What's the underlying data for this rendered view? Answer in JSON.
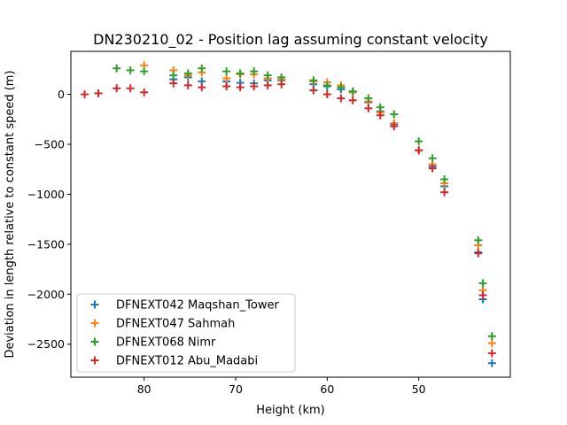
{
  "chart_data": {
    "type": "scatter",
    "title": "DN230210_02 - Position lag assuming constant velocity",
    "xlabel": "Height (km)",
    "ylabel": "Deviation in length relative to constant speed (m)",
    "xlim": [
      88.0,
      40.0
    ],
    "ylim": [
      -2830,
      430
    ],
    "xticks": [
      80,
      70,
      60,
      50
    ],
    "yticks": [
      0,
      -500,
      -1000,
      -1500,
      -2000,
      -2500
    ],
    "grid": false,
    "legend_position": "lower-left",
    "marker": "+",
    "series": [
      {
        "name": "DFNEXT042 Maqshan_Tower",
        "color": "#1f77b4",
        "x": [
          76.8,
          75.2,
          73.7,
          71.0,
          69.5,
          68.0,
          66.5,
          65.0,
          61.5,
          60.0,
          58.5,
          57.2,
          55.5,
          54.2,
          52.7,
          50.0,
          48.5,
          47.2,
          43.5,
          43.0,
          42.0
        ],
        "y": [
          150,
          170,
          130,
          130,
          115,
          110,
          140,
          140,
          100,
          80,
          50,
          20,
          -80,
          -170,
          -300,
          -560,
          -720,
          -920,
          -1580,
          -2050,
          -2690
        ]
      },
      {
        "name": "DFNEXT047 Sahmah",
        "color": "#ff7f0e",
        "x": [
          80.0,
          76.8,
          75.2,
          73.7,
          71.0,
          69.5,
          68.0,
          66.5,
          65.0,
          61.5,
          60.0,
          58.5,
          57.2,
          55.5,
          54.2,
          52.7,
          50.0,
          48.5,
          47.2,
          43.5,
          43.0,
          42.0
        ],
        "y": [
          290,
          240,
          190,
          220,
          160,
          200,
          200,
          160,
          150,
          130,
          120,
          90,
          20,
          -70,
          -180,
          -290,
          -560,
          -700,
          -890,
          -1510,
          -1960,
          -2490
        ]
      },
      {
        "name": "DFNEXT068 Nimr",
        "color": "#2ca02c",
        "x": [
          83.0,
          81.5,
          80.0,
          76.8,
          75.2,
          73.7,
          71.0,
          69.5,
          68.0,
          66.5,
          65.0,
          61.5,
          60.0,
          58.5,
          57.2,
          55.5,
          54.2,
          52.7,
          50.0,
          48.5,
          47.2,
          43.5,
          43.0,
          42.0
        ],
        "y": [
          260,
          240,
          230,
          190,
          210,
          260,
          230,
          210,
          230,
          190,
          170,
          140,
          90,
          70,
          30,
          -40,
          -130,
          -200,
          -470,
          -640,
          -850,
          -1460,
          -1890,
          -2420
        ]
      },
      {
        "name": "DFNEXT012 Abu_Madabi",
        "color": "#d62728",
        "x": [
          86.5,
          85.0,
          83.0,
          81.5,
          80.0,
          76.8,
          75.2,
          73.7,
          71.0,
          69.5,
          68.0,
          66.5,
          65.0,
          61.5,
          60.0,
          58.5,
          57.2,
          55.5,
          54.2,
          52.7,
          50.0,
          48.5,
          47.2,
          43.5,
          43.0,
          42.0
        ],
        "y": [
          0,
          10,
          60,
          60,
          20,
          110,
          90,
          70,
          80,
          70,
          80,
          90,
          100,
          40,
          0,
          -40,
          -60,
          -140,
          -210,
          -320,
          -560,
          -740,
          -980,
          -1590,
          -2010,
          -2590
        ]
      }
    ]
  }
}
